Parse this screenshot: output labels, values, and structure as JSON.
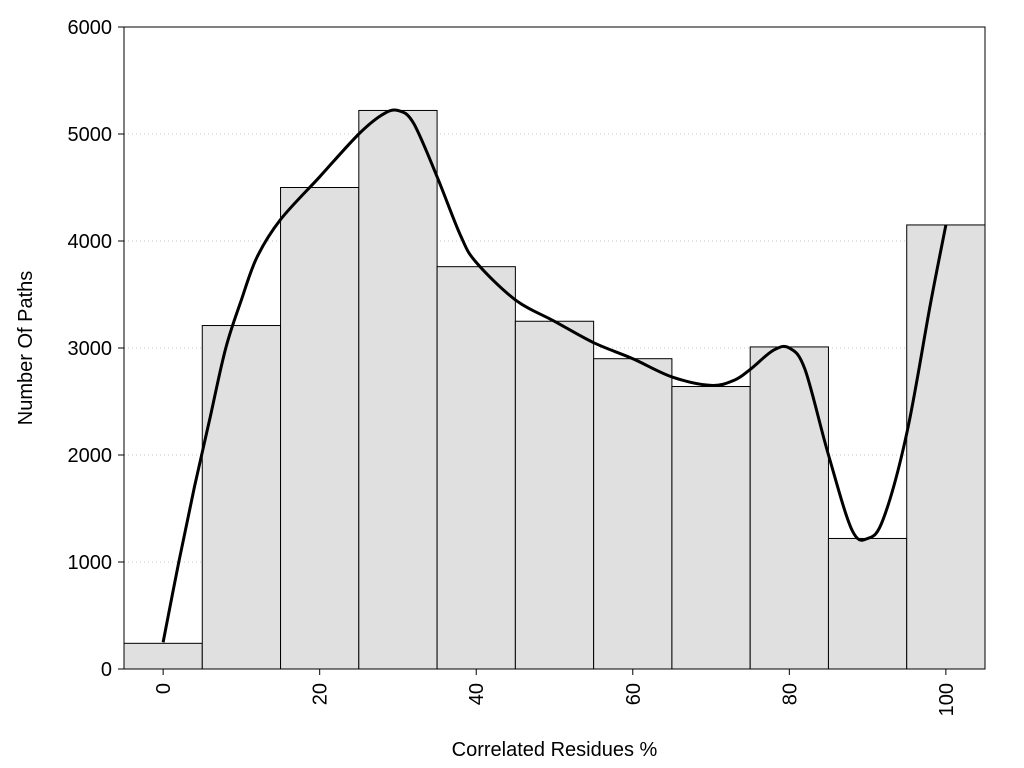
{
  "chart_data": {
    "type": "bar",
    "title": "",
    "xlabel": "Correlated Residues %",
    "ylabel": "Number Of Paths",
    "xlim": [
      -5,
      105
    ],
    "ylim": [
      0,
      6000
    ],
    "x_ticks": [
      "0",
      "20",
      "40",
      "60",
      "80",
      "100"
    ],
    "y_ticks": [
      "0",
      "1000",
      "2000",
      "3000",
      "4000",
      "5000",
      "6000"
    ],
    "grid": "horizontal dotted",
    "bin_width": 10,
    "bins": [
      {
        "center": 0,
        "value": 240
      },
      {
        "center": 10,
        "value": 3210
      },
      {
        "center": 20,
        "value": 4500
      },
      {
        "center": 30,
        "value": 5220
      },
      {
        "center": 40,
        "value": 3760
      },
      {
        "center": 50,
        "value": 3250
      },
      {
        "center": 60,
        "value": 2900
      },
      {
        "center": 70,
        "value": 2640
      },
      {
        "center": 80,
        "value": 3010
      },
      {
        "center": 90,
        "value": 1220
      },
      {
        "center": 100,
        "value": 4150
      }
    ],
    "curve": {
      "type": "line",
      "x": [
        0,
        2,
        4,
        6,
        8,
        10,
        12,
        15,
        20,
        25,
        28,
        30,
        32,
        35,
        38,
        40,
        45,
        50,
        55,
        60,
        65,
        70,
        73,
        75,
        78,
        80,
        82,
        85,
        88,
        90,
        92,
        95,
        98,
        100
      ],
      "y": [
        250,
        1000,
        1700,
        2350,
        3000,
        3450,
        3850,
        4200,
        4600,
        5000,
        5180,
        5220,
        5100,
        4600,
        4050,
        3800,
        3450,
        3250,
        3050,
        2900,
        2730,
        2650,
        2700,
        2800,
        2980,
        3000,
        2800,
        2000,
        1300,
        1220,
        1400,
        2200,
        3400,
        4150
      ]
    },
    "bar_fill": "#e0e0e0",
    "bar_stroke": "#000000",
    "line_color": "#000000"
  }
}
